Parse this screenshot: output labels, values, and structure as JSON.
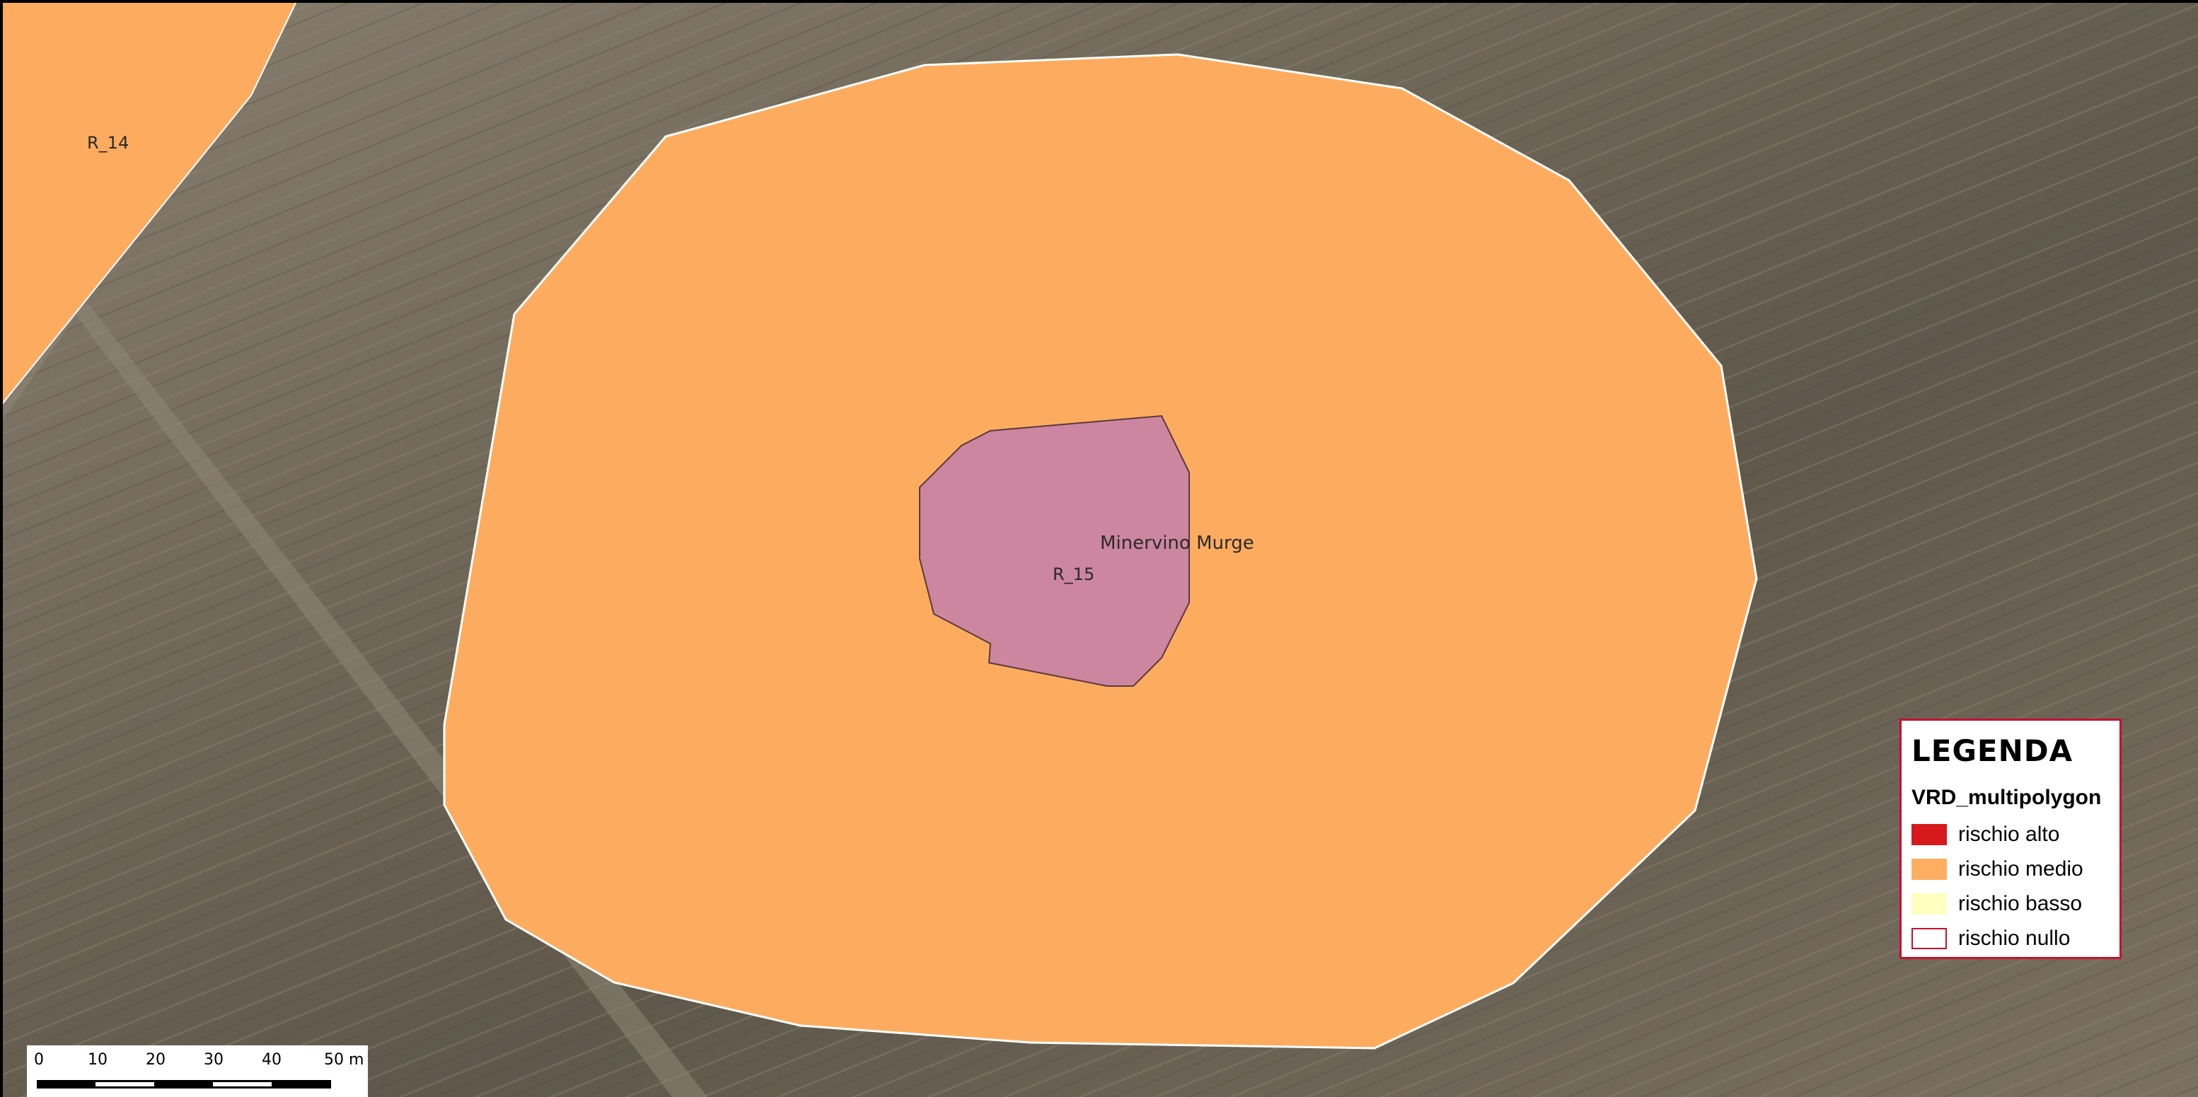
{
  "map": {
    "features": [
      {
        "id": "R_14",
        "label": "R_14"
      },
      {
        "id": "R_15",
        "label": "R_15"
      }
    ],
    "place_label": "Minervino Murge",
    "colors": {
      "rischio_medio": "#fdac5f",
      "polygon_outline": "#ffffff",
      "site_fill": "#cc869f",
      "site_outline": "#5a3a3a"
    }
  },
  "legend": {
    "title": "LEGENDA",
    "layer": "VRD_multipolygon",
    "items": [
      {
        "label": "rischio alto",
        "color": "#d7191c",
        "border": "#d7191c"
      },
      {
        "label": "rischio medio",
        "color": "#fdae61",
        "border": "#fdae61"
      },
      {
        "label": "rischio basso",
        "color": "#ffffbf",
        "border": "#ffffbf"
      },
      {
        "label": "rischio nullo",
        "color": "#ffffff",
        "border": "#c8102e"
      }
    ]
  },
  "scalebar": {
    "ticks": [
      "0",
      "10",
      "20",
      "30",
      "40",
      "50 m"
    ]
  }
}
